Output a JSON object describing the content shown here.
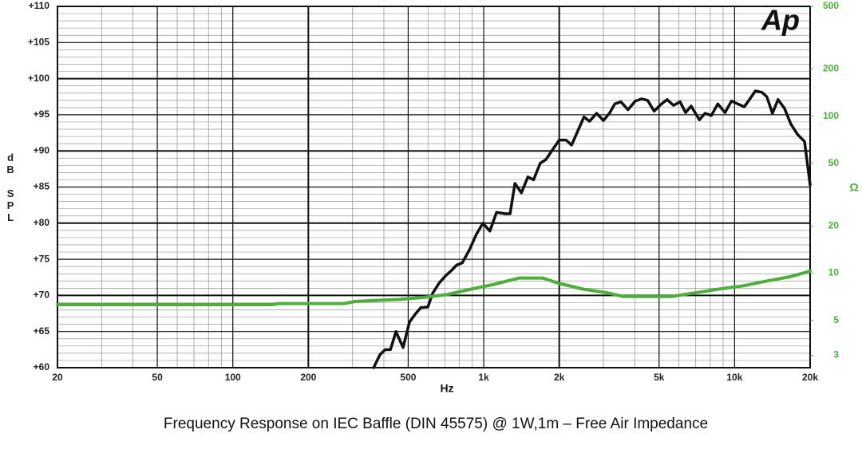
{
  "chart_data": {
    "type": "line",
    "title": "Frequency Response on IEC Baffle (DIN 45575)  @ 1W,1m – Free  Air Impedance",
    "x_label": "Hz",
    "y_label": "dB SPL",
    "y2_label": "Ω",
    "logo": "Ap",
    "xscale": "log",
    "y2scale": "log",
    "grid": true,
    "minor_grid": true,
    "xlim": [
      20,
      20000
    ],
    "xticks": [
      20,
      50,
      100,
      200,
      500,
      {
        "value": 1000,
        "label": "1k"
      },
      {
        "value": 2000,
        "label": "2k"
      },
      {
        "value": 5000,
        "label": "5k"
      },
      {
        "value": 10000,
        "label": "10k"
      },
      {
        "value": 20000,
        "label": "20k"
      }
    ],
    "ylim": [
      60,
      110
    ],
    "yticks": [
      {
        "value": 60,
        "label": "+60"
      },
      {
        "value": 65,
        "label": "+65"
      },
      {
        "value": 70,
        "label": "+70"
      },
      {
        "value": 75,
        "label": "+75"
      },
      {
        "value": 80,
        "label": "+80"
      },
      {
        "value": 85,
        "label": "+85"
      },
      {
        "value": 90,
        "label": "+90"
      },
      {
        "value": 95,
        "label": "+95"
      },
      {
        "value": 100,
        "label": "+100"
      },
      {
        "value": 105,
        "label": "+105"
      },
      {
        "value": 110,
        "label": "+110"
      }
    ],
    "y2lim": [
      2.5,
      500
    ],
    "y2ticks": [
      3,
      5,
      10,
      20,
      50,
      100,
      200,
      500
    ],
    "series": [
      {
        "color": "#111111",
        "x": [
          364,
          386,
          405,
          425,
          447,
          477,
          506,
          533,
          561,
          599,
          626,
          664,
          704,
          741,
          780,
          821,
          877,
          933,
          993,
          1058,
          1125,
          1220,
          1274,
          1332,
          1413,
          1500,
          1580,
          1680,
          1770,
          1876,
          2000,
          2130,
          2240,
          2360,
          2510,
          2640,
          2820,
          3000,
          3170,
          3330,
          3520,
          3760,
          4020,
          4260,
          4500,
          4780,
          5070,
          5380,
          5710,
          6060,
          6380,
          6710,
          7240,
          7620,
          8080,
          8570,
          9160,
          9720,
          10300,
          10930,
          11510,
          12100,
          12860,
          13440,
          14150,
          14900,
          15800,
          16770,
          17800,
          19000,
          20000
        ],
        "values": [
          60,
          61.8,
          62.5,
          62.5,
          65,
          62.8,
          66.3,
          67.4,
          68.3,
          68.4,
          70.3,
          71.7,
          72.7,
          73.4,
          74.2,
          74.5,
          76.3,
          78.4,
          80,
          78.9,
          81.5,
          81.3,
          81.3,
          85.5,
          84.2,
          86.4,
          86,
          88.3,
          88.8,
          90.1,
          91.5,
          91.5,
          90.8,
          92.6,
          94.7,
          94.1,
          95.2,
          94.2,
          95.2,
          96.5,
          96.8,
          95.7,
          96.9,
          97.2,
          97,
          95.5,
          96.4,
          97.1,
          96.3,
          96.8,
          95.3,
          96.2,
          94.3,
          95.2,
          94.9,
          96.5,
          95.3,
          96.9,
          96.5,
          96.1,
          97.2,
          98.3,
          98.1,
          97.5,
          95.2,
          97.1,
          95.9,
          93.7,
          92.3,
          91.3,
          85.3
        ]
      },
      {
        "color": "#4caf3a",
        "axis": "y2",
        "x": [
          20,
          143,
          153,
          277,
          308,
          368,
          458,
          572,
          713,
          888,
          1105,
          1380,
          1720,
          2000,
          2500,
          3100,
          3600,
          5600,
          7000,
          8600,
          10800,
          13400,
          16700,
          20000
        ],
        "values": [
          6.3,
          6.3,
          6.4,
          6.4,
          6.6,
          6.7,
          6.8,
          7.0,
          7.3,
          7.9,
          8.5,
          9.3,
          9.3,
          8.6,
          7.9,
          7.5,
          7.1,
          7.1,
          7.5,
          7.9,
          8.3,
          8.9,
          9.5,
          10.3
        ]
      }
    ]
  }
}
